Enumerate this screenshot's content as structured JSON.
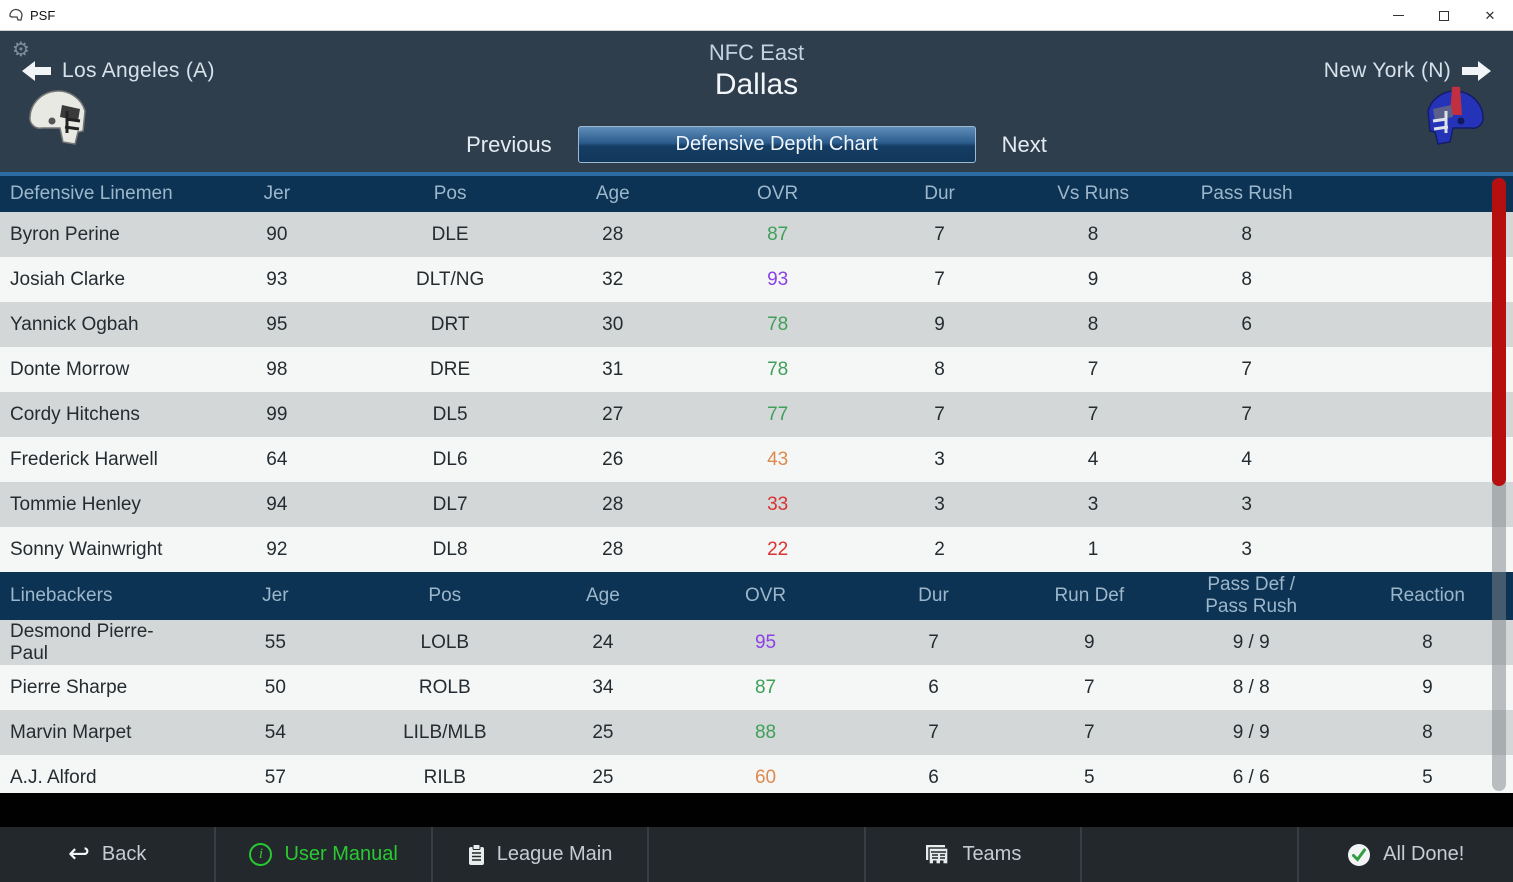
{
  "window": {
    "title": "PSF"
  },
  "header": {
    "division": "NFC East",
    "team": "Dallas",
    "prev_team_label": "Los Angeles (A)",
    "next_team_label": "New York (N)",
    "nav": {
      "previous": "Previous",
      "current": "Defensive Depth Chart",
      "next": "Next"
    }
  },
  "tables": {
    "defensive_linemen": {
      "columns": [
        "Defensive Linemen",
        "Jer",
        "Pos",
        "Age",
        "OVR",
        "Dur",
        "Vs Runs",
        "Pass Rush"
      ],
      "rows": [
        {
          "name": "Byron Perine",
          "jer": "90",
          "pos": "DLE",
          "age": "28",
          "ovr": "87",
          "ovr_color": "#3fa05a",
          "dur": "7",
          "vs_runs": "8",
          "pass_rush": "8"
        },
        {
          "name": "Josiah Clarke",
          "jer": "93",
          "pos": "DLT/NG",
          "age": "32",
          "ovr": "93",
          "ovr_color": "#8a42e6",
          "dur": "7",
          "vs_runs": "9",
          "pass_rush": "8"
        },
        {
          "name": "Yannick Ogbah",
          "jer": "95",
          "pos": "DRT",
          "age": "30",
          "ovr": "78",
          "ovr_color": "#3fa05a",
          "dur": "9",
          "vs_runs": "8",
          "pass_rush": "6"
        },
        {
          "name": "Donte Morrow",
          "jer": "98",
          "pos": "DRE",
          "age": "31",
          "ovr": "78",
          "ovr_color": "#3fa05a",
          "dur": "8",
          "vs_runs": "7",
          "pass_rush": "7"
        },
        {
          "name": "Cordy Hitchens",
          "jer": "99",
          "pos": "DL5",
          "age": "27",
          "ovr": "77",
          "ovr_color": "#3fa05a",
          "dur": "7",
          "vs_runs": "7",
          "pass_rush": "7"
        },
        {
          "name": "Frederick Harwell",
          "jer": "64",
          "pos": "DL6",
          "age": "26",
          "ovr": "43",
          "ovr_color": "#dd8a4e",
          "dur": "3",
          "vs_runs": "4",
          "pass_rush": "4"
        },
        {
          "name": "Tommie Henley",
          "jer": "94",
          "pos": "DL7",
          "age": "28",
          "ovr": "33",
          "ovr_color": "#da3232",
          "dur": "3",
          "vs_runs": "3",
          "pass_rush": "3"
        },
        {
          "name": "Sonny Wainwright",
          "jer": "92",
          "pos": "DL8",
          "age": "28",
          "ovr": "22",
          "ovr_color": "#da3232",
          "dur": "2",
          "vs_runs": "1",
          "pass_rush": "3"
        }
      ]
    },
    "linebackers": {
      "columns": [
        "Linebackers",
        "Jer",
        "Pos",
        "Age",
        "OVR",
        "Dur",
        "Run Def",
        "Pass Def / Pass Rush",
        "Reaction"
      ],
      "rows": [
        {
          "name": "Desmond Pierre-Paul",
          "jer": "55",
          "pos": "LOLB",
          "age": "24",
          "ovr": "95",
          "ovr_color": "#8a42e6",
          "dur": "7",
          "run_def": "9",
          "pass_def": "9 / 9",
          "reaction": "8"
        },
        {
          "name": "Pierre Sharpe",
          "jer": "50",
          "pos": "ROLB",
          "age": "34",
          "ovr": "87",
          "ovr_color": "#3fa05a",
          "dur": "6",
          "run_def": "7",
          "pass_def": "8 / 8",
          "reaction": "9"
        },
        {
          "name": "Marvin Marpet",
          "jer": "54",
          "pos": "LILB/MLB",
          "age": "25",
          "ovr": "88",
          "ovr_color": "#3fa05a",
          "dur": "7",
          "run_def": "7",
          "pass_def": "9 / 9",
          "reaction": "8"
        },
        {
          "name": "A.J. Alford",
          "jer": "57",
          "pos": "RILB",
          "age": "25",
          "ovr": "60",
          "ovr_color": "#dd8a4e",
          "dur": "6",
          "run_def": "5",
          "pass_def": "6 / 6",
          "reaction": "5"
        }
      ]
    }
  },
  "toolbar": {
    "back": "Back",
    "user_manual": "User Manual",
    "league_main": "League Main",
    "teams": "Teams",
    "all_done": "All Done!"
  },
  "colors": {
    "ovr_elite": "#8a42e6",
    "ovr_good": "#3fa05a",
    "ovr_fair": "#dd8a4e",
    "ovr_poor": "#da3232",
    "scrollbar_thumb": "#b50f0f",
    "accent_green": "#29c931",
    "table_header": "#0d3354",
    "header_bg": "#2f3e4d"
  }
}
